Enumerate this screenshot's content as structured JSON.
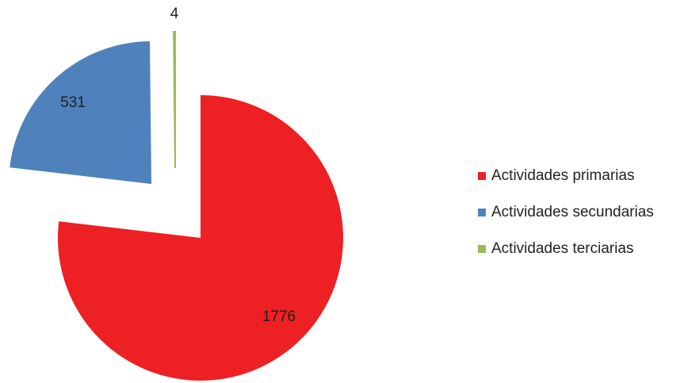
{
  "chart_data": {
    "type": "pie",
    "categories": [
      "Actividades primarias",
      "Actividades secundarias",
      "Actividades terciarias"
    ],
    "values": [
      1776,
      531,
      4
    ],
    "colors": [
      "#ed2024",
      "#4f81bd",
      "#9bbb59"
    ],
    "legend": "right"
  }
}
